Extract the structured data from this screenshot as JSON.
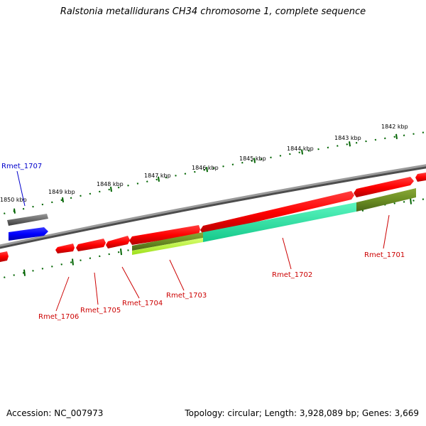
{
  "title": "Ralstonia metallidurans CH34 chromosome 1, complete sequence",
  "footer": {
    "accession": "Accession: NC_007973",
    "summary": "Topology: circular; Length: 3,928,089 bp; Genes: 3,669"
  },
  "ticks": [
    {
      "label": "1842 kbp"
    },
    {
      "label": "1843 kbp"
    },
    {
      "label": "1844 kbp"
    },
    {
      "label": "1845 kbp"
    },
    {
      "label": "1846 kbp"
    },
    {
      "label": "1847 kbp"
    },
    {
      "label": "1848 kbp"
    },
    {
      "label": "1849 kbp"
    },
    {
      "label": "1850 kbp"
    }
  ],
  "genes": [
    {
      "label": "Rmet_1701",
      "color": "#cc0000"
    },
    {
      "label": "Rmet_1702",
      "color": "#cc0000"
    },
    {
      "label": "Rmet_1703",
      "color": "#cc0000"
    },
    {
      "label": "Rmet_1704",
      "color": "#cc0000"
    },
    {
      "label": "Rmet_1705",
      "color": "#cc0000"
    },
    {
      "label": "Rmet_1706",
      "color": "#cc0000"
    },
    {
      "label": "Rmet_1707",
      "color": "#0000cc"
    }
  ],
  "colors": {
    "backbone": "#808080",
    "cds": "#ff0000",
    "gene_forward_blue": "#0000ff",
    "gene_grey": "#666666",
    "olive": "#6b8e23",
    "lime": "#adff2f",
    "aquamarine": "#2fe6a4",
    "tick": "#006400"
  }
}
